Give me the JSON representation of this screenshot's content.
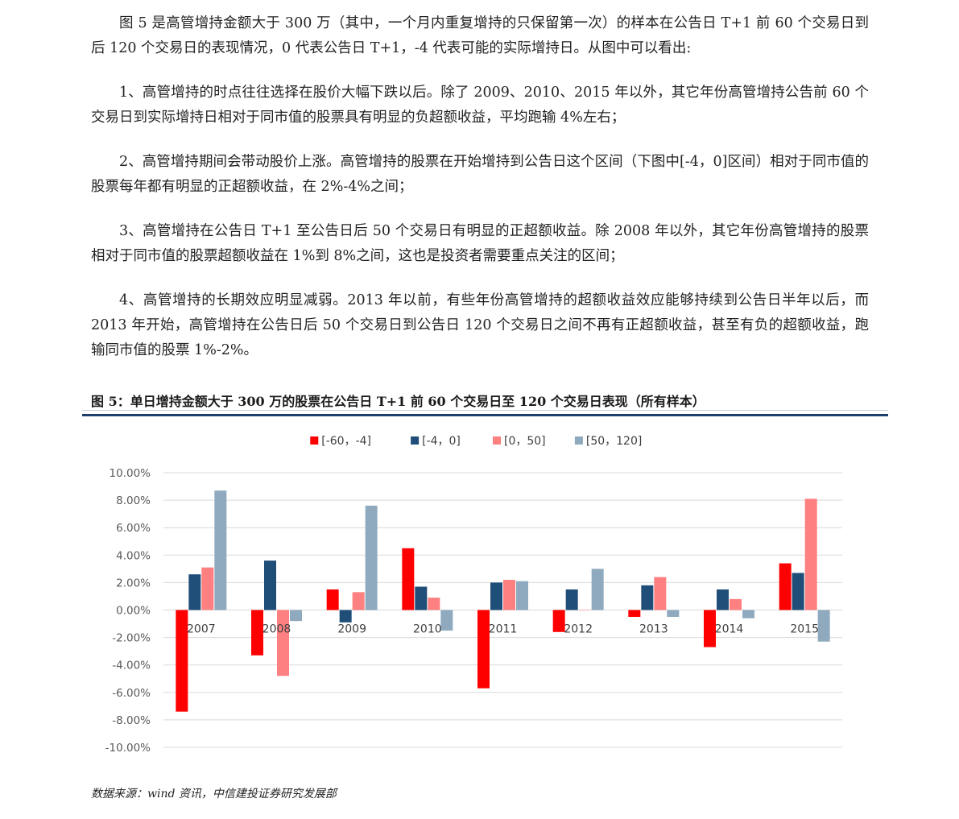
{
  "paragraphs": [
    "图 5 是高管增持金额大于 300 万（其中，一个月内重复增持的只保留第一次）的样本在公告日 T+1 前 60 个交易日到后 120 个交易日的表现情况，0 代表公告日 T+1，-4 代表可能的实际增持日。从图中可以看出:",
    "1、高管增持的时点往往选择在股价大幅下跌以后。除了 2009、2010、2015 年以外，其它年份高管增持公告前 60 个交易日到实际增持日相对于同市值的股票具有明显的负超额收益，平均跑输 4%左右；",
    "2、高管增持期间会带动股价上涨。高管增持的股票在开始增持到公告日这个区间（下图中[-4，0]区间）相对于同市值的股票每年都有明显的正超额收益，在 2%-4%之间；",
    "3、高管增持在公告日 T+1 至公告日后 50 个交易日有明显的正超额收益。除 2008 年以外，其它年份高管增持的股票相对于同市值的股票超额收益在 1%到 8%之间，这也是投资者需要重点关注的区间；",
    "4、高管增持的长期效应明显减弱。2013 年以前，有些年份高管增持的超额收益效应能够持续到公告日半年以后，而 2013 年开始，高管增持在公告日后 50 个交易日到公告日 120 个交易日之间不再有正超额收益，甚至有负的超额收益，跑输同市值的股票 1%-2%。"
  ],
  "figure": {
    "title": "图 5：单日增持金额大于 300 万的股票在公告日 T+1 前 60 个交易日至 120 个交易日表现（所有样本）",
    "source": "数据来源：wind 资讯，中信建投证券研究发展部"
  },
  "chart_data": {
    "type": "bar",
    "title": "",
    "xlabel": "",
    "ylabel": "",
    "categories": [
      "2007",
      "2008",
      "2009",
      "2010",
      "2011",
      "2012",
      "2013",
      "2014",
      "2015"
    ],
    "ylim": [
      -0.1,
      0.1
    ],
    "yticks": [
      0.1,
      0.08,
      0.06,
      0.04,
      0.02,
      0.0,
      -0.02,
      -0.04,
      -0.06,
      -0.08,
      -0.1
    ],
    "ytick_labels": [
      "10.00%",
      "8.00%",
      "6.00%",
      "4.00%",
      "2.00%",
      "0.00%",
      "-2.00%",
      "-4.00%",
      "-6.00%",
      "-8.00%",
      "-10.00%"
    ],
    "grid": true,
    "legend_position": "top",
    "series": [
      {
        "name": "[-60，-4]",
        "color": "#ff0000",
        "values": [
          -0.074,
          -0.033,
          0.015,
          0.045,
          -0.057,
          -0.016,
          -0.005,
          -0.027,
          0.034
        ]
      },
      {
        "name": "[-4，0]",
        "color": "#1f4e79",
        "values": [
          0.026,
          0.036,
          -0.009,
          0.017,
          0.02,
          0.015,
          0.018,
          0.015,
          0.027
        ]
      },
      {
        "name": "[0，50]",
        "color": "#ff8080",
        "values": [
          0.031,
          -0.048,
          0.013,
          0.009,
          0.022,
          0.0,
          0.024,
          0.008,
          0.081
        ]
      },
      {
        "name": "[50，120]",
        "color": "#8faabe",
        "values": [
          0.087,
          -0.008,
          0.076,
          -0.015,
          0.021,
          0.03,
          -0.005,
          -0.006,
          -0.023
        ]
      }
    ]
  }
}
